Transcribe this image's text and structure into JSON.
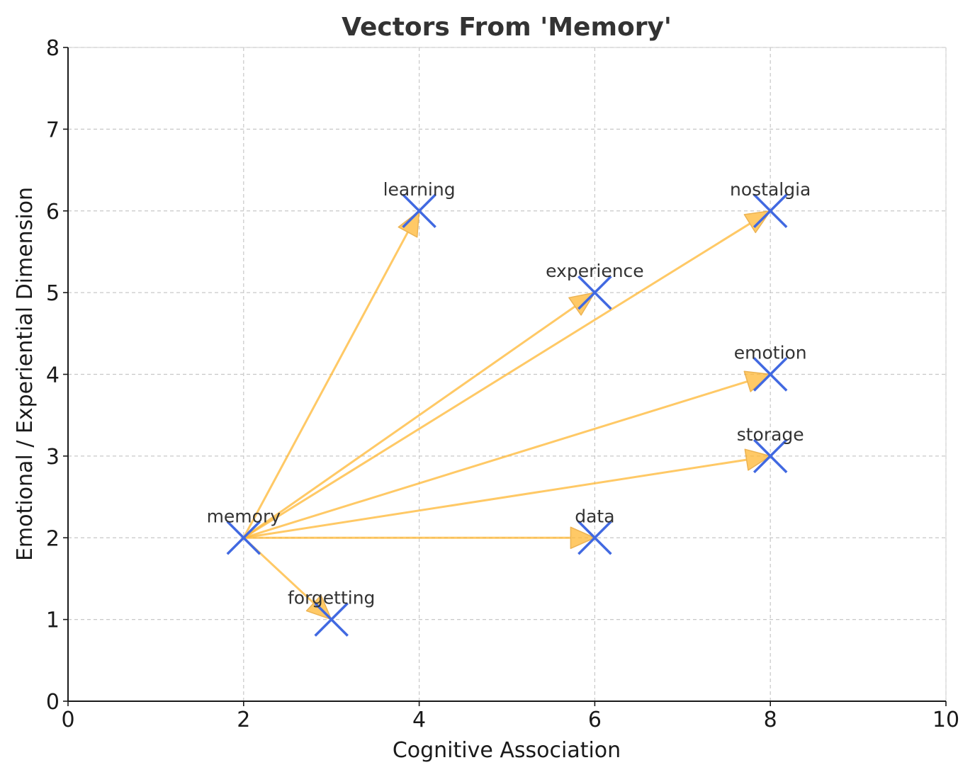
{
  "chart_data": {
    "type": "scatter",
    "title": "Vectors From 'Memory'",
    "xlabel": "Cognitive Association",
    "ylabel": "Emotional / Experiential Dimension",
    "xlim": [
      0,
      10
    ],
    "ylim": [
      0,
      8
    ],
    "xticks": [
      0,
      2,
      4,
      6,
      8,
      10
    ],
    "yticks": [
      0,
      1,
      2,
      3,
      4,
      5,
      6,
      7,
      8
    ],
    "grid": true,
    "origin": {
      "label": "memory",
      "x": 2,
      "y": 2
    },
    "points": [
      {
        "label": "memory",
        "x": 2,
        "y": 2
      },
      {
        "label": "learning",
        "x": 4,
        "y": 6
      },
      {
        "label": "nostalgia",
        "x": 8,
        "y": 6
      },
      {
        "label": "experience",
        "x": 6,
        "y": 5
      },
      {
        "label": "emotion",
        "x": 8,
        "y": 4
      },
      {
        "label": "storage",
        "x": 8,
        "y": 3
      },
      {
        "label": "data",
        "x": 6,
        "y": 2
      },
      {
        "label": "forgetting",
        "x": 3,
        "y": 1
      }
    ],
    "vectors": [
      {
        "from": "memory",
        "to": "learning"
      },
      {
        "from": "memory",
        "to": "nostalgia"
      },
      {
        "from": "memory",
        "to": "experience"
      },
      {
        "from": "memory",
        "to": "emotion"
      },
      {
        "from": "memory",
        "to": "storage"
      },
      {
        "from": "memory",
        "to": "data"
      },
      {
        "from": "memory",
        "to": "forgetting"
      }
    ],
    "colors": {
      "marker": "#4169e1",
      "arrow": "#ffb733",
      "arrow_edge": "#e69a1a",
      "grid": "#c8c8c8",
      "text": "#333333"
    }
  }
}
